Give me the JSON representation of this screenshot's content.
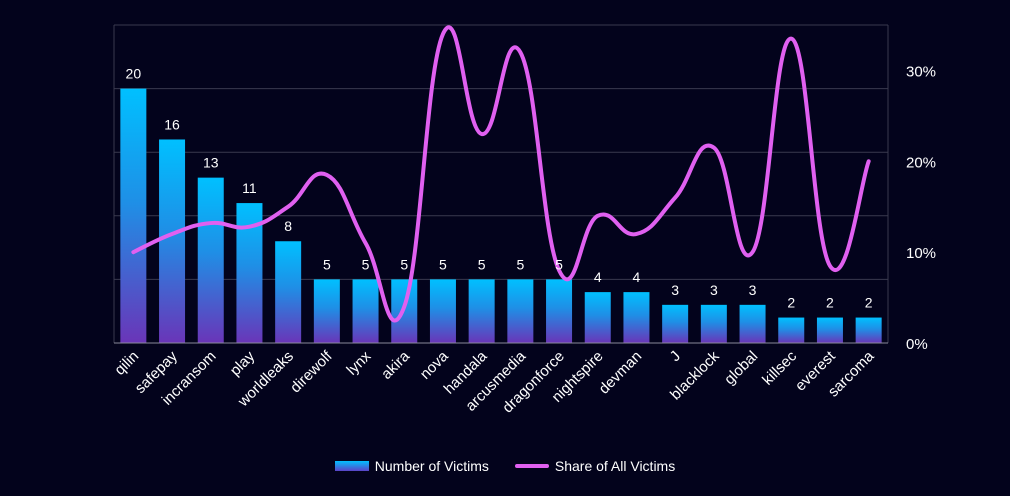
{
  "chart_data": {
    "type": "bar",
    "categories": [
      "qilin",
      "safepay",
      "incransom",
      "play",
      "worldleaks",
      "direwolf",
      "lynx",
      "akira",
      "nova",
      "handala",
      "arcusmedia",
      "dragonforce",
      "nightspire",
      "devman",
      "J",
      "blacklock",
      "global",
      "killsec",
      "everest",
      "sarcoma"
    ],
    "series": [
      {
        "name": "Number of Victims",
        "type": "bar",
        "axis": "left",
        "values": [
          20,
          16,
          13,
          11,
          8,
          5,
          5,
          5,
          5,
          5,
          5,
          5,
          4,
          4,
          3,
          3,
          3,
          2,
          2,
          2
        ],
        "data_labels": [
          "20",
          "16",
          "13",
          "11",
          "8",
          "5",
          "5",
          "5",
          "5",
          "5",
          "5",
          "5",
          "4",
          "4",
          "3",
          "3",
          "3",
          "2",
          "2",
          "2"
        ]
      },
      {
        "name": "Share of All Victims",
        "type": "line",
        "axis": "right",
        "values": [
          10,
          12,
          13.2,
          12.8,
          15,
          18.5,
          11,
          4,
          34,
          23,
          32,
          8,
          14,
          12,
          16,
          21.5,
          10,
          33.5,
          8.5,
          20
        ]
      }
    ],
    "y_left_range": [
      0,
      25
    ],
    "y_right_range": [
      0,
      35
    ],
    "y_right_ticks": [
      "0%",
      "10%",
      "20%",
      "30%"
    ],
    "grid": true,
    "legend_position": "bottom",
    "colors": {
      "background": "#03031c",
      "bar_top": "#00c0ff",
      "bar_bottom": "#6a35b8",
      "line": "#e060f0",
      "grid": "#3a3a4e",
      "text": "#ffffff"
    }
  }
}
